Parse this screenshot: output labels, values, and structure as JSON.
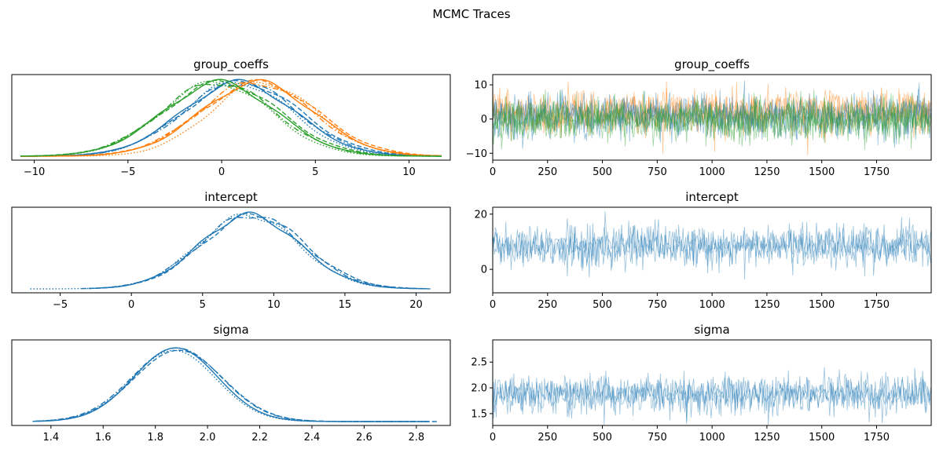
{
  "figure_title": "MCMC Traces",
  "colors": {
    "chain_a": "#1f77b4",
    "chain_b": "#ff7f0e",
    "chain_c": "#2ca02c"
  },
  "chart_data": [
    {
      "id": "group_coeffs_density",
      "type": "line",
      "title": "group_coeffs",
      "xlim": [
        -11.2,
        12.2
      ],
      "xticks": [
        -10,
        -5,
        0,
        5,
        10
      ],
      "xtick_labels": [
        "−10",
        "−5",
        "0",
        "5",
        "10"
      ],
      "yticks_visible": false,
      "series": [
        {
          "color": "#1f77b4",
          "linestyle": "solid",
          "mean": 0.9,
          "sd": 3.0
        },
        {
          "color": "#1f77b4",
          "linestyle": "dashed",
          "mean": 1.1,
          "sd": 3.1
        },
        {
          "color": "#1f77b4",
          "linestyle": "dotted",
          "mean": 0.8,
          "sd": 2.9
        },
        {
          "color": "#1f77b4",
          "linestyle": "dashdot",
          "mean": 1.0,
          "sd": 3.0
        },
        {
          "color": "#ff7f0e",
          "linestyle": "solid",
          "mean": 1.9,
          "sd": 3.0
        },
        {
          "color": "#ff7f0e",
          "linestyle": "dashed",
          "mean": 2.0,
          "sd": 3.1
        },
        {
          "color": "#ff7f0e",
          "linestyle": "dotted",
          "mean": 2.2,
          "sd": 2.8
        },
        {
          "color": "#ff7f0e",
          "linestyle": "dashdot",
          "mean": 1.8,
          "sd": 3.0
        },
        {
          "color": "#2ca02c",
          "linestyle": "solid",
          "mean": -0.1,
          "sd": 3.0
        },
        {
          "color": "#2ca02c",
          "linestyle": "dashed",
          "mean": 0.0,
          "sd": 3.1
        },
        {
          "color": "#2ca02c",
          "linestyle": "dotted",
          "mean": -0.3,
          "sd": 2.9
        },
        {
          "color": "#2ca02c",
          "linestyle": "dashdot",
          "mean": -0.2,
          "sd": 3.0
        }
      ]
    },
    {
      "id": "group_coeffs_trace",
      "type": "line",
      "title": "group_coeffs",
      "xlim": [
        0,
        1999
      ],
      "ylim": [
        -12,
        13
      ],
      "xticks": [
        0,
        250,
        500,
        750,
        1000,
        1250,
        1500,
        1750
      ],
      "yticks": [
        -10,
        0,
        10
      ],
      "ytick_labels": [
        "−10",
        "0",
        "10"
      ],
      "n_draws": 2000,
      "series": [
        {
          "color": "#ff7f0e",
          "mean": 2.0,
          "sd": 3.0
        },
        {
          "color": "#1f77b4",
          "mean": 1.0,
          "sd": 3.0
        },
        {
          "color": "#2ca02c",
          "mean": 0.0,
          "sd": 3.0
        }
      ]
    },
    {
      "id": "intercept_density",
      "type": "line",
      "title": "intercept",
      "xlim": [
        -8.4,
        22.4
      ],
      "xticks": [
        -5,
        0,
        5,
        10,
        15,
        20
      ],
      "xtick_labels": [
        "−5",
        "0",
        "5",
        "10",
        "15",
        "20"
      ],
      "yticks_visible": false,
      "series": [
        {
          "color": "#1f77b4",
          "linestyle": "solid",
          "mean": 8.3,
          "sd": 3.5,
          "min": -3.0,
          "max": 21.0
        },
        {
          "color": "#1f77b4",
          "linestyle": "dashed",
          "mean": 8.6,
          "sd": 3.6,
          "min": -3.5,
          "max": 20.5
        },
        {
          "color": "#1f77b4",
          "linestyle": "dotted",
          "mean": 8.2,
          "sd": 3.5,
          "min": -7.1,
          "max": 20.0
        },
        {
          "color": "#1f77b4",
          "linestyle": "dashdot",
          "mean": 8.4,
          "sd": 3.6,
          "min": -3.0,
          "max": 20.8
        }
      ]
    },
    {
      "id": "intercept_trace",
      "type": "line",
      "title": "intercept",
      "xlim": [
        0,
        1999
      ],
      "ylim": [
        -8.5,
        22.5
      ],
      "xticks": [
        0,
        250,
        500,
        750,
        1000,
        1250,
        1500,
        1750
      ],
      "yticks": [
        0,
        20
      ],
      "ytick_labels": [
        "0",
        "20"
      ],
      "n_draws": 2000,
      "color": "#1f77b4",
      "mean": 8.3,
      "sd": 3.5
    },
    {
      "id": "sigma_density",
      "type": "line",
      "title": "sigma",
      "xlim": [
        1.25,
        2.93
      ],
      "xticks": [
        1.4,
        1.6,
        1.8,
        2.0,
        2.2,
        2.4,
        2.6,
        2.8
      ],
      "xtick_labels": [
        "1.4",
        "1.6",
        "1.8",
        "2.0",
        "2.2",
        "2.4",
        "2.6",
        "2.8"
      ],
      "yticks_visible": false,
      "series": [
        {
          "color": "#1f77b4",
          "linestyle": "solid",
          "mean": 1.88,
          "sd": 0.16,
          "min": 1.33,
          "max": 2.85
        },
        {
          "color": "#1f77b4",
          "linestyle": "dashed",
          "mean": 1.89,
          "sd": 0.17,
          "min": 1.35,
          "max": 2.88
        },
        {
          "color": "#1f77b4",
          "linestyle": "dotted",
          "mean": 1.87,
          "sd": 0.16,
          "min": 1.33,
          "max": 2.8
        },
        {
          "color": "#1f77b4",
          "linestyle": "dashdot",
          "mean": 1.88,
          "sd": 0.17,
          "min": 1.34,
          "max": 2.84
        }
      ]
    },
    {
      "id": "sigma_trace",
      "type": "line",
      "title": "sigma",
      "xlim": [
        0,
        1999
      ],
      "ylim": [
        1.27,
        2.93
      ],
      "xticks": [
        0,
        250,
        500,
        750,
        1000,
        1250,
        1500,
        1750
      ],
      "yticks": [
        1.5,
        2.0,
        2.5
      ],
      "ytick_labels": [
        "1.5",
        "2.0",
        "2.5"
      ],
      "n_draws": 2000,
      "color": "#1f77b4",
      "mean": 1.88,
      "sd": 0.17
    }
  ]
}
